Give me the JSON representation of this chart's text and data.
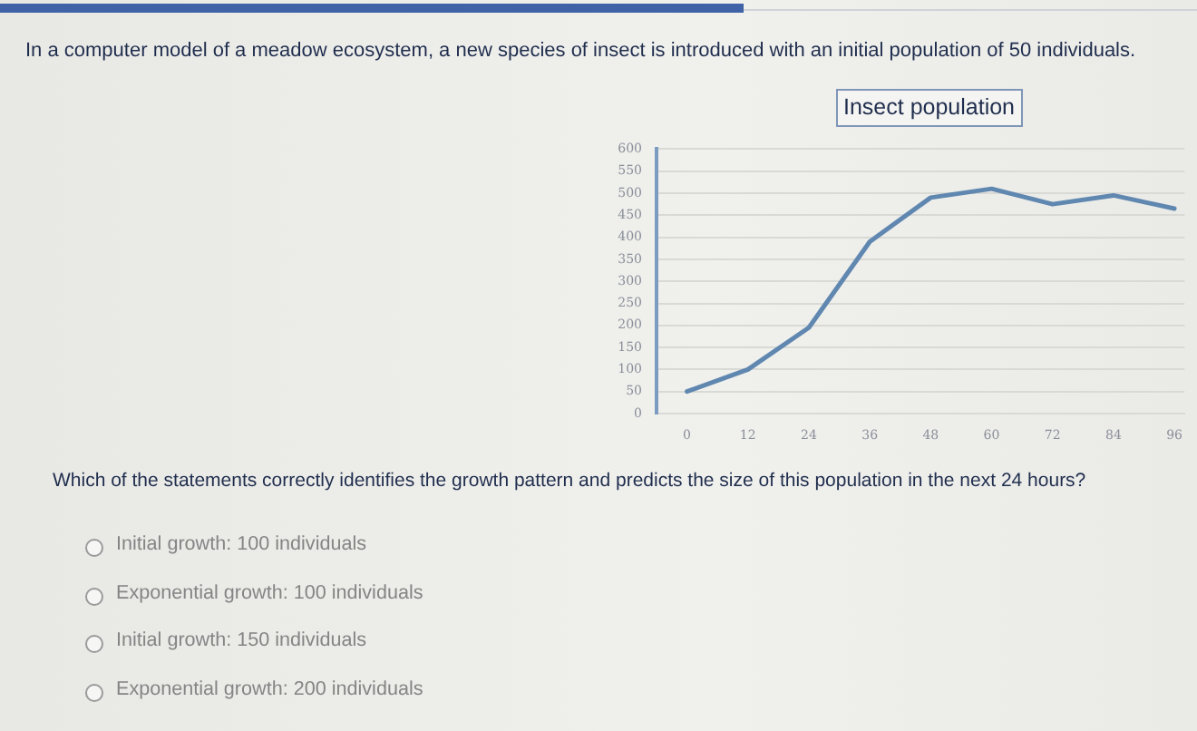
{
  "chart_data": {
    "type": "line",
    "title": "Insect population",
    "x": [
      0,
      12,
      24,
      36,
      48,
      60,
      72,
      84,
      96
    ],
    "series": [
      {
        "color": "#5f87b0",
        "values": [
          50,
          100,
          195,
          390,
          490,
          510,
          475,
          495,
          465
        ]
      }
    ],
    "xlim": [
      -6,
      98
    ],
    "xticks": [
      0,
      12,
      24,
      36,
      48,
      60,
      72,
      84,
      96
    ],
    "ylim": [
      0,
      600
    ],
    "yticks": [
      0,
      50,
      100,
      150,
      200,
      250,
      300,
      350,
      400,
      450,
      500,
      550,
      600
    ],
    "grid": "y",
    "marker": "none",
    "line_style": "solid",
    "annotations": [
      "In a computer model of a meadow ecosystem, a new species of insect is introduced with an initial population of 50 individuals.",
      "Which of the statements correctly identifies the growth pattern and predicts the size of this population in the next 24 hours?",
      "Initial growth: 100 individuals",
      "Exponential growth: 100 individuals",
      "Initial growth: 150 individuals",
      "Exponential growth: 200 individuals"
    ]
  }
}
